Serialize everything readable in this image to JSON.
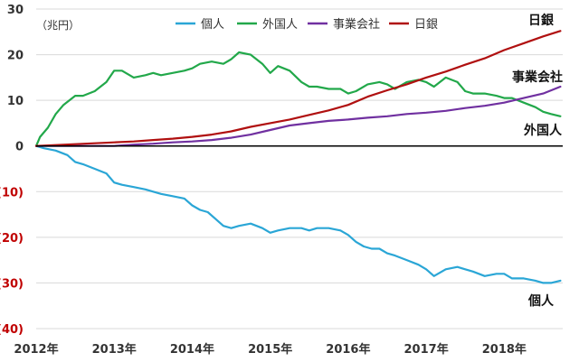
{
  "chart_data": {
    "type": "line",
    "unit_label": "（兆円）",
    "ylim": [
      -40,
      30
    ],
    "yticks": [
      {
        "value": 30,
        "label": "30"
      },
      {
        "value": 20,
        "label": "20"
      },
      {
        "value": 10,
        "label": "10"
      },
      {
        "value": 0,
        "label": "0"
      },
      {
        "value": -10,
        "label": "(10)"
      },
      {
        "value": -20,
        "label": "(20)"
      },
      {
        "value": -30,
        "label": "(30)"
      },
      {
        "value": -40,
        "label": "(40)"
      }
    ],
    "negative_tick_color": "#c00000",
    "xlim": [
      2012.0,
      2018.75
    ],
    "xticks": [
      {
        "value": 2012,
        "label": "2012年"
      },
      {
        "value": 2013,
        "label": "2013年"
      },
      {
        "value": 2014,
        "label": "2014年"
      },
      {
        "value": 2015,
        "label": "2015年"
      },
      {
        "value": 2016,
        "label": "2016年"
      },
      {
        "value": 2017,
        "label": "2017年"
      },
      {
        "value": 2018,
        "label": "2018年"
      }
    ],
    "grid": true,
    "legend": "top-center",
    "series": [
      {
        "name": "個人",
        "color": "#2aa6d6",
        "end_label": "個人",
        "x": [
          2012.0,
          2012.1,
          2012.25,
          2012.4,
          2012.5,
          2012.6,
          2012.75,
          2012.9,
          2013.0,
          2013.1,
          2013.25,
          2013.4,
          2013.5,
          2013.6,
          2013.75,
          2013.9,
          2014.0,
          2014.1,
          2014.2,
          2014.3,
          2014.4,
          2014.5,
          2014.6,
          2014.75,
          2014.9,
          2015.0,
          2015.1,
          2015.25,
          2015.4,
          2015.5,
          2015.6,
          2015.75,
          2015.9,
          2016.0,
          2016.1,
          2016.2,
          2016.3,
          2016.4,
          2016.5,
          2016.6,
          2016.75,
          2016.9,
          2017.0,
          2017.1,
          2017.25,
          2017.4,
          2017.5,
          2017.6,
          2017.75,
          2017.9,
          2018.0,
          2018.1,
          2018.25,
          2018.4,
          2018.5,
          2018.6,
          2018.72
        ],
        "values": [
          0,
          -0.5,
          -1,
          -2,
          -3.5,
          -4,
          -5,
          -6,
          -8,
          -8.5,
          -9,
          -9.5,
          -10,
          -10.5,
          -11,
          -11.5,
          -13,
          -14,
          -14.5,
          -16,
          -17.5,
          -18,
          -17.5,
          -17,
          -18,
          -19,
          -18.5,
          -18,
          -18,
          -18.5,
          -18,
          -18,
          -18.5,
          -19.5,
          -21,
          -22,
          -22.5,
          -22.5,
          -23.5,
          -24,
          -25,
          -26,
          -27,
          -28.5,
          -27,
          -26.5,
          -27,
          -27.5,
          -28.5,
          -28,
          -28,
          -29,
          -29,
          -29.5,
          -30,
          -30,
          -29.5
        ]
      },
      {
        "name": "外国人",
        "color": "#22a84a",
        "end_label": "外国人",
        "x": [
          2012.0,
          2012.05,
          2012.15,
          2012.25,
          2012.35,
          2012.5,
          2012.6,
          2012.75,
          2012.9,
          2013.0,
          2013.1,
          2013.25,
          2013.4,
          2013.5,
          2013.6,
          2013.75,
          2013.9,
          2014.0,
          2014.1,
          2014.25,
          2014.4,
          2014.5,
          2014.6,
          2014.75,
          2014.9,
          2015.0,
          2015.1,
          2015.25,
          2015.4,
          2015.5,
          2015.6,
          2015.75,
          2015.9,
          2016.0,
          2016.1,
          2016.25,
          2016.4,
          2016.5,
          2016.6,
          2016.75,
          2016.9,
          2017.0,
          2017.1,
          2017.25,
          2017.4,
          2017.5,
          2017.6,
          2017.75,
          2017.9,
          2018.0,
          2018.1,
          2018.25,
          2018.4,
          2018.5,
          2018.6,
          2018.72
        ],
        "values": [
          0,
          2,
          4,
          7,
          9,
          11,
          11,
          12,
          14,
          16.5,
          16.5,
          15,
          15.5,
          16,
          15.5,
          16,
          16.5,
          17,
          18,
          18.5,
          18,
          19,
          20.5,
          20,
          18,
          16,
          17.5,
          16.5,
          14,
          13,
          13,
          12.5,
          12.5,
          11.5,
          12,
          13.5,
          14,
          13.5,
          12.5,
          14,
          14.5,
          14,
          13,
          15,
          14,
          12,
          11.5,
          11.5,
          11,
          10.5,
          10.5,
          9.5,
          8.5,
          7.5,
          7,
          6.5
        ]
      },
      {
        "name": "事業会社",
        "color": "#7030a0",
        "end_label": "事業会社",
        "x": [
          2012.0,
          2012.5,
          2013.0,
          2013.25,
          2013.5,
          2013.75,
          2014.0,
          2014.25,
          2014.5,
          2014.75,
          2015.0,
          2015.25,
          2015.5,
          2015.75,
          2016.0,
          2016.25,
          2016.5,
          2016.75,
          2017.0,
          2017.25,
          2017.5,
          2017.75,
          2018.0,
          2018.25,
          2018.5,
          2018.72
        ],
        "values": [
          0,
          0,
          0,
          0.3,
          0.5,
          0.8,
          1,
          1.3,
          1.8,
          2.5,
          3.5,
          4.5,
          5,
          5.5,
          5.8,
          6.2,
          6.5,
          7,
          7.3,
          7.7,
          8.3,
          8.8,
          9.5,
          10.5,
          11.5,
          13
        ]
      },
      {
        "name": "日銀",
        "color": "#b01010",
        "end_label": "日銀",
        "x": [
          2012.0,
          2012.5,
          2013.0,
          2013.25,
          2013.5,
          2013.75,
          2014.0,
          2014.25,
          2014.5,
          2014.75,
          2015.0,
          2015.25,
          2015.5,
          2015.75,
          2016.0,
          2016.25,
          2016.5,
          2016.75,
          2017.0,
          2017.25,
          2017.5,
          2017.75,
          2018.0,
          2018.25,
          2018.5,
          2018.72
        ],
        "values": [
          0,
          0.4,
          0.8,
          1,
          1.3,
          1.6,
          2,
          2.5,
          3.2,
          4.2,
          5,
          5.8,
          6.8,
          7.8,
          9,
          10.8,
          12.2,
          13.5,
          15,
          16.3,
          17.8,
          19.2,
          21,
          22.5,
          24,
          25.2
        ]
      }
    ]
  }
}
